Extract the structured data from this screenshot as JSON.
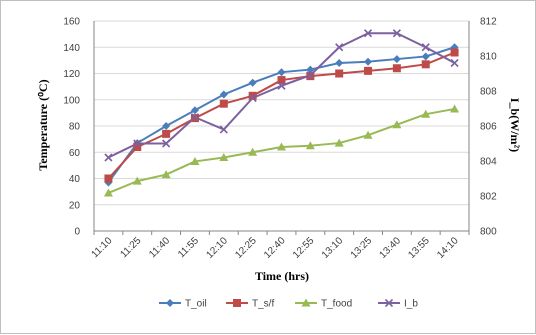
{
  "chart_data": {
    "type": "line",
    "categories": [
      "11:10",
      "11:25",
      "11:40",
      "11:55",
      "12:10",
      "12:25",
      "12:40",
      "12:55",
      "13:10",
      "13:25",
      "13:40",
      "13:55",
      "14:10"
    ],
    "xlabel": "Time (hrs)",
    "ylabel": "Temperature (⁰C)",
    "y2label": "I_b(W/m²)",
    "ylim": [
      0,
      160
    ],
    "y2lim": [
      800,
      812
    ],
    "yticks": [
      0,
      20,
      40,
      60,
      80,
      100,
      120,
      140,
      160
    ],
    "y2ticks": [
      800,
      802,
      804,
      806,
      808,
      810,
      812
    ],
    "grid": "horizontal",
    "legend_position": "bottom",
    "series": [
      {
        "name": "T_oil",
        "axis": "left",
        "color": "#4a7ebb",
        "marker": "diamond",
        "values": [
          37,
          67,
          80,
          92,
          104,
          113,
          121,
          123,
          128,
          129,
          131,
          133,
          140
        ]
      },
      {
        "name": "T_s/f",
        "axis": "left",
        "color": "#be4b48",
        "marker": "square",
        "values": [
          40,
          64,
          74,
          86,
          97,
          103,
          115,
          118,
          120,
          122,
          124,
          127,
          136
        ]
      },
      {
        "name": "T_food",
        "axis": "left",
        "color": "#98b954",
        "marker": "triangle",
        "values": [
          29,
          38,
          43,
          53,
          56,
          60,
          64,
          65,
          67,
          73,
          81,
          89,
          93
        ]
      },
      {
        "name": "I_b",
        "axis": "right",
        "color": "#7d60a0",
        "marker": "x",
        "values": [
          804.2,
          805,
          805,
          806.5,
          805.8,
          807.6,
          808.3,
          808.9,
          810.5,
          811.3,
          811.3,
          810.5,
          809.6
        ]
      }
    ]
  }
}
